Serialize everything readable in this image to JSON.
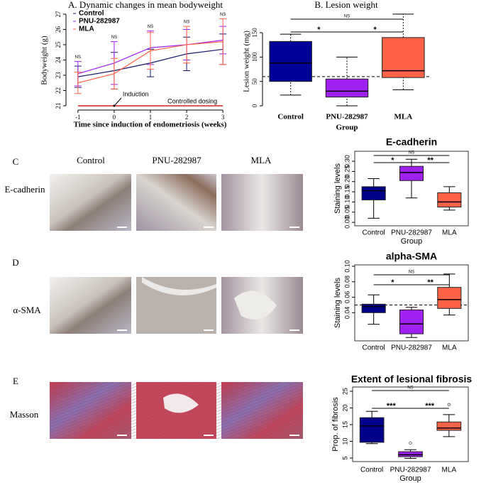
{
  "figure": {
    "column_labels": [
      "Control",
      "PNU-282987",
      "MLA"
    ],
    "rows": [
      {
        "letter": "C",
        "label": "E-cadherin"
      },
      {
        "letter": "D",
        "label": "α-SMA"
      },
      {
        "letter": "E",
        "label": "Masson"
      }
    ]
  },
  "chart_data": [
    {
      "type": "line",
      "title": "A. Dynamic changes in mean bodyweight",
      "x_label": "Time since induction of endometriosis (weeks)",
      "y_label": "Bodyweight (g)",
      "x": [
        -1,
        0,
        1,
        2,
        3
      ],
      "xlim": [
        -1.33,
        3.31
      ],
      "ylim": [
        20.72,
        27.23
      ],
      "xticks": [
        -1,
        0,
        1,
        2,
        3
      ],
      "yticks": [
        21,
        22,
        23,
        24,
        25,
        26,
        27
      ],
      "legend": "top-left",
      "series": [
        {
          "name": "Control",
          "color": "#191970",
          "values": [
            22.9,
            23.3,
            23.8,
            24.4,
            24.7
          ],
          "errors": [
            0.7,
            1.2,
            0.9,
            1.1,
            1.0
          ]
        },
        {
          "name": "PNU-282987",
          "color": "#a020f0",
          "values": [
            23.1,
            23.8,
            24.8,
            25.0,
            25.3
          ],
          "errors": [
            0.8,
            1.4,
            1.1,
            1.0,
            0.9
          ]
        },
        {
          "name": "MLA",
          "color": "#ff6347",
          "values": [
            22.5,
            23.1,
            24.6,
            25.0,
            25.2
          ],
          "errors": [
            0.7,
            1.0,
            1.2,
            1.2,
            1.5
          ]
        }
      ],
      "point_labels": [
        "NS",
        "NS",
        "NS",
        "NS",
        "NS"
      ],
      "induction": {
        "text": "Induction",
        "x": 0,
        "y": 21
      },
      "dosing_line": {
        "text": "Controlled dosing",
        "from": -1,
        "to": 3,
        "y": 21,
        "color": "#d62020"
      }
    },
    {
      "type": "box",
      "title": "B. Lesion weight",
      "x_label": "Group",
      "y_label": "Lesion weight (mg)",
      "categories": [
        "Control",
        "PNU-282987",
        "MLA"
      ],
      "colors": [
        "#000099",
        "#a020f0",
        "#ff6347"
      ],
      "ylim": [
        -8.7,
        190.8
      ],
      "yticks": [
        0,
        50,
        100,
        150
      ],
      "frame": false,
      "whisker_style": "dashed",
      "reference_line": 60,
      "boxes": [
        {
          "min": 22,
          "q1": 50,
          "median": 88,
          "q3": 132,
          "max": 147
        },
        {
          "min": 0,
          "q1": 18,
          "median": 30,
          "q3": 55,
          "max": 100
        },
        {
          "min": 33,
          "q1": 58,
          "median": 72,
          "q3": 140,
          "max": 188
        }
      ],
      "comparisons": [
        {
          "pair": [
            "Control",
            "MLA"
          ],
          "label": "NS"
        },
        {
          "pair": [
            "Control",
            "PNU-282987"
          ],
          "label": "*"
        },
        {
          "pair": [
            "PNU-282987",
            "MLA"
          ],
          "label": "*"
        }
      ]
    },
    {
      "type": "box",
      "title": "E-cadherin",
      "x_label": "Group",
      "y_label": "Staining levels",
      "categories": [
        "Control",
        "PNU-282987",
        "MLA"
      ],
      "colors": [
        "#00008b",
        "#a020f0",
        "#ff6347"
      ],
      "ylim": [
        -0.017,
        0.349
      ],
      "frame": true,
      "whisker_style": "solid",
      "yticks": [
        {
          "value": 0,
          "label": "0.00"
        },
        {
          "value": 0.05,
          "label": "0.05"
        },
        {
          "value": 0.1,
          "label": "0.10"
        },
        {
          "value": 0.15,
          "label": "0.15"
        },
        {
          "value": 0.2,
          "label": "0.20"
        },
        {
          "value": 0.25,
          "label": "0.25"
        },
        {
          "value": 0.3,
          "label": "0.30"
        }
      ],
      "boxes": [
        {
          "min": 0.02,
          "q1": 0.11,
          "median": 0.155,
          "q3": 0.175,
          "max": 0.215
        },
        {
          "min": 0.12,
          "q1": 0.205,
          "median": 0.245,
          "q3": 0.275,
          "max": 0.31
        },
        {
          "min": 0.06,
          "q1": 0.075,
          "median": 0.1,
          "q3": 0.145,
          "max": 0.175
        }
      ],
      "comparisons": [
        {
          "pair": [
            "Control",
            "MLA"
          ],
          "label": "NS"
        },
        {
          "pair": [
            "Control",
            "PNU-282987"
          ],
          "label": "*"
        },
        {
          "pair": [
            "PNU-282987",
            "MLA"
          ],
          "label": "**"
        }
      ]
    },
    {
      "type": "box",
      "title": "alpha-SMA",
      "y_label": "Staining levels",
      "categories": [
        "Control",
        "PNU-282987",
        "MLA"
      ],
      "colors": [
        "#00008b",
        "#a020f0",
        "#ff6347"
      ],
      "ylim": [
        0.0036,
        0.1018
      ],
      "frame": true,
      "whisker_style": "solid",
      "reference_line": 0.05,
      "yticks": [
        {
          "value": 0.04,
          "label": "0.04"
        },
        {
          "value": 0.06,
          "label": "0.06"
        },
        {
          "value": 0.08,
          "label": "0.08"
        },
        {
          "value": 0.1,
          "label": "0.10"
        }
      ],
      "boxes": [
        {
          "min": 0.025,
          "q1": 0.04,
          "median": 0.048,
          "q3": 0.051,
          "max": 0.063
        },
        {
          "min": 0.008,
          "q1": 0.0127,
          "median": 0.0255,
          "q3": 0.0436,
          "max": 0.047
        },
        {
          "min": 0.037,
          "q1": 0.0455,
          "median": 0.057,
          "q3": 0.0727,
          "max": 0.09
        }
      ],
      "comparisons": [
        {
          "pair": [
            "Control",
            "MLA"
          ],
          "label": "NS"
        },
        {
          "pair": [
            "Control",
            "PNU-282987"
          ],
          "label": "*"
        },
        {
          "pair": [
            "PNU-282987",
            "MLA"
          ],
          "label": "**"
        }
      ]
    },
    {
      "type": "box",
      "title": "Extent of lesional fibrosis",
      "x_label": "Group",
      "y_label": "Prop. of fibrosis",
      "categories": [
        "Control",
        "PNU-282987",
        "MLA"
      ],
      "colors": [
        "#00008b",
        "#a020f0",
        "#ff6347"
      ],
      "ylim": [
        3.94,
        26.28
      ],
      "yticks": [
        5,
        10,
        15,
        20,
        25
      ],
      "frame": true,
      "whisker_style": "solid",
      "boxes": [
        {
          "min": 9.3,
          "q1": 9.7,
          "median": 14.6,
          "q3": 17.1,
          "max": 19
        },
        {
          "min": 4.9,
          "q1": 5.4,
          "median": 6.0,
          "q3": 6.9,
          "max": 7.5,
          "outliers": [
            9.5
          ]
        },
        {
          "min": 11.4,
          "q1": 13.3,
          "median": 14,
          "q3": 15.8,
          "max": 18,
          "outliers": [
            21
          ]
        }
      ],
      "comparisons": [
        {
          "pair": [
            "Control",
            "MLA"
          ],
          "label": "NS"
        },
        {
          "pair": [
            "Control",
            "PNU-282987"
          ],
          "label": "***"
        },
        {
          "pair": [
            "PNU-282987",
            "MLA"
          ],
          "label": "***"
        }
      ]
    }
  ]
}
